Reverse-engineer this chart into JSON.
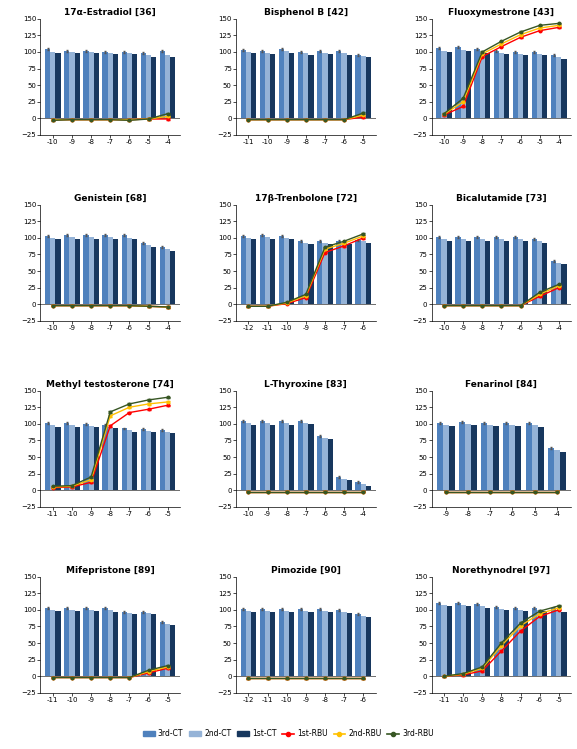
{
  "subplots": [
    {
      "title": "17α-Estradiol [36]",
      "x_ticks": [
        -10,
        -9,
        -8,
        -7,
        -6,
        -5,
        -4
      ],
      "bar3_ct": [
        104,
        101,
        101,
        100,
        100,
        99,
        101
      ],
      "bar2_ct": [
        100,
        100,
        100,
        98,
        99,
        96,
        95
      ],
      "bar1_ct": [
        99,
        98,
        98,
        97,
        97,
        92,
        93
      ],
      "line1_rbu": [
        -2,
        -2,
        -2,
        -2,
        -2,
        -1,
        -1
      ],
      "line2_rbu": [
        -2,
        -2,
        -2,
        -2,
        -2,
        -1,
        3
      ],
      "line3_rbu": [
        -3,
        -2,
        -2,
        -2,
        -3,
        -1,
        7
      ],
      "xlim": [
        -0.65,
        6.65
      ],
      "ylim": [
        -25,
        150
      ]
    },
    {
      "title": "Bisphenol B [42]",
      "x_ticks": [
        -11,
        -10,
        -9,
        -8,
        -7,
        -6,
        -5
      ],
      "bar3_ct": [
        103,
        101,
        104,
        100,
        101,
        101,
        95
      ],
      "bar2_ct": [
        100,
        99,
        101,
        98,
        99,
        98,
        94
      ],
      "bar1_ct": [
        98,
        97,
        99,
        96,
        97,
        96,
        92
      ],
      "line1_rbu": [
        -2,
        -2,
        -2,
        -2,
        -2,
        -2,
        2
      ],
      "line2_rbu": [
        -2,
        -2,
        -2,
        -2,
        -2,
        -2,
        5
      ],
      "line3_rbu": [
        -2,
        -2,
        -2,
        -2,
        -2,
        -2,
        8
      ],
      "xlim": [
        -0.65,
        6.65
      ],
      "ylim": [
        -25,
        150
      ]
    },
    {
      "title": "Fluoxymestrone [43]",
      "x_ticks": [
        -10,
        -9,
        -8,
        -7,
        -6,
        -5,
        -4
      ],
      "bar3_ct": [
        106,
        107,
        104,
        101,
        100,
        100,
        96
      ],
      "bar2_ct": [
        102,
        103,
        100,
        98,
        97,
        97,
        93
      ],
      "bar1_ct": [
        100,
        101,
        98,
        97,
        95,
        95,
        90
      ],
      "line1_rbu": [
        5,
        18,
        93,
        108,
        122,
        132,
        137
      ],
      "line2_rbu": [
        6,
        25,
        97,
        112,
        126,
        136,
        140
      ],
      "line3_rbu": [
        7,
        30,
        100,
        116,
        130,
        140,
        143
      ],
      "xlim": [
        -0.65,
        6.65
      ],
      "ylim": [
        -25,
        150
      ]
    },
    {
      "title": "Genistein [68]",
      "x_ticks": [
        -10,
        -9,
        -8,
        -7,
        -6,
        -5,
        -4
      ],
      "bar3_ct": [
        103,
        104,
        104,
        104,
        104,
        92,
        87
      ],
      "bar2_ct": [
        100,
        101,
        101,
        101,
        100,
        89,
        84
      ],
      "bar1_ct": [
        98,
        99,
        99,
        99,
        98,
        86,
        81
      ],
      "line1_rbu": [
        -2,
        -2,
        -2,
        -2,
        -2,
        -3,
        -4
      ],
      "line2_rbu": [
        -2,
        -2,
        -2,
        -2,
        -2,
        -3,
        -4
      ],
      "line3_rbu": [
        -2,
        -2,
        -2,
        -2,
        -2,
        -3,
        -4
      ],
      "xlim": [
        -0.65,
        6.65
      ],
      "ylim": [
        -25,
        150
      ]
    },
    {
      "title": "17β-Trenbolone [72]",
      "x_ticks": [
        -12,
        -11,
        -10,
        -9,
        -8,
        -7,
        -6
      ],
      "bar3_ct": [
        103,
        104,
        103,
        95,
        95,
        95,
        97
      ],
      "bar2_ct": [
        100,
        101,
        100,
        93,
        93,
        93,
        95
      ],
      "bar1_ct": [
        98,
        99,
        98,
        91,
        91,
        91,
        93
      ],
      "line1_rbu": [
        -3,
        -3,
        1,
        10,
        78,
        88,
        100
      ],
      "line2_rbu": [
        -3,
        -3,
        2,
        13,
        83,
        92,
        103
      ],
      "line3_rbu": [
        -3,
        -3,
        3,
        15,
        86,
        95,
        106
      ],
      "xlim": [
        -0.65,
        6.65
      ],
      "ylim": [
        -25,
        150
      ]
    },
    {
      "title": "Bicalutamide [73]",
      "x_ticks": [
        -10,
        -9,
        -8,
        -7,
        -6,
        -5,
        -4
      ],
      "bar3_ct": [
        101,
        101,
        101,
        101,
        101,
        98,
        65
      ],
      "bar2_ct": [
        98,
        98,
        98,
        98,
        98,
        95,
        62
      ],
      "bar1_ct": [
        96,
        96,
        96,
        96,
        96,
        93,
        60
      ],
      "line1_rbu": [
        -2,
        -2,
        -2,
        -2,
        -2,
        12,
        25
      ],
      "line2_rbu": [
        -2,
        -2,
        -2,
        -2,
        -2,
        15,
        28
      ],
      "line3_rbu": [
        -2,
        -2,
        -2,
        -2,
        -2,
        18,
        30
      ],
      "xlim": [
        -0.65,
        6.65
      ],
      "ylim": [
        -25,
        150
      ]
    },
    {
      "title": "Methyl testosterone [74]",
      "x_ticks": [
        -11,
        -10,
        -9,
        -8,
        -7,
        -6,
        -5
      ],
      "bar3_ct": [
        101,
        101,
        100,
        99,
        93,
        92,
        91
      ],
      "bar2_ct": [
        98,
        98,
        97,
        96,
        90,
        89,
        88
      ],
      "bar1_ct": [
        96,
        96,
        95,
        94,
        88,
        87,
        86
      ],
      "line1_rbu": [
        4,
        5,
        12,
        97,
        117,
        122,
        128
      ],
      "line2_rbu": [
        5,
        6,
        16,
        112,
        125,
        130,
        133
      ],
      "line3_rbu": [
        6,
        7,
        20,
        118,
        130,
        136,
        140
      ],
      "xlim": [
        -0.65,
        6.65
      ],
      "ylim": [
        -25,
        150
      ]
    },
    {
      "title": "L-Thyroxine [83]",
      "x_ticks": [
        -10,
        -9,
        -8,
        -7,
        -6,
        -5,
        -4
      ],
      "bar3_ct": [
        104,
        104,
        104,
        105,
        82,
        20,
        12
      ],
      "bar2_ct": [
        101,
        101,
        101,
        102,
        79,
        17,
        9
      ],
      "bar1_ct": [
        99,
        99,
        99,
        100,
        77,
        15,
        7
      ],
      "line1_rbu": [
        -2,
        -2,
        -2,
        -2,
        -2,
        -2,
        -2
      ],
      "line2_rbu": [
        -2,
        -2,
        -2,
        -2,
        -2,
        -2,
        -2
      ],
      "line3_rbu": [
        -2,
        -2,
        -2,
        -2,
        -2,
        -2,
        -2
      ],
      "xlim": [
        -0.65,
        6.65
      ],
      "ylim": [
        -25,
        150
      ]
    },
    {
      "title": "Fenarinol [84]",
      "x_ticks": [
        -9,
        -8,
        -7,
        -6,
        -5,
        -4
      ],
      "bar3_ct": [
        102,
        103,
        102,
        102,
        101,
        63
      ],
      "bar2_ct": [
        99,
        100,
        99,
        99,
        98,
        60
      ],
      "bar1_ct": [
        97,
        98,
        97,
        97,
        96,
        58
      ],
      "line1_rbu": [
        -2,
        -2,
        -2,
        -2,
        -2,
        -2
      ],
      "line2_rbu": [
        -2,
        -2,
        -2,
        -2,
        -2,
        -2
      ],
      "line3_rbu": [
        -2,
        -2,
        -2,
        -2,
        -2,
        -2
      ],
      "xlim": [
        -0.65,
        5.65
      ],
      "ylim": [
        -25,
        150
      ]
    },
    {
      "title": "Mifepristone [89]",
      "x_ticks": [
        -11,
        -10,
        -9,
        -8,
        -7,
        -6,
        -5
      ],
      "bar3_ct": [
        103,
        103,
        103,
        102,
        97,
        97,
        82
      ],
      "bar2_ct": [
        100,
        100,
        100,
        99,
        95,
        95,
        79
      ],
      "bar1_ct": [
        98,
        98,
        98,
        97,
        93,
        93,
        77
      ],
      "line1_rbu": [
        -2,
        -2,
        -2,
        -2,
        -2,
        5,
        12
      ],
      "line2_rbu": [
        -2,
        -2,
        -2,
        -2,
        -2,
        7,
        14
      ],
      "line3_rbu": [
        -2,
        -2,
        -2,
        -2,
        -2,
        9,
        16
      ],
      "xlim": [
        -0.65,
        6.65
      ],
      "ylim": [
        -25,
        150
      ]
    },
    {
      "title": "Pimozide [90]",
      "x_ticks": [
        -12,
        -11,
        -10,
        -9,
        -8,
        -7,
        -6
      ],
      "bar3_ct": [
        101,
        101,
        101,
        101,
        101,
        100,
        94
      ],
      "bar2_ct": [
        98,
        98,
        98,
        98,
        98,
        97,
        91
      ],
      "bar1_ct": [
        96,
        96,
        96,
        96,
        96,
        95,
        89
      ],
      "line1_rbu": [
        -3,
        -3,
        -3,
        -3,
        -3,
        -3,
        -3
      ],
      "line2_rbu": [
        -3,
        -3,
        -3,
        -3,
        -3,
        -3,
        -3
      ],
      "line3_rbu": [
        -3,
        -3,
        -3,
        -3,
        -3,
        -3,
        -3
      ],
      "xlim": [
        -0.65,
        6.65
      ],
      "ylim": [
        -25,
        150
      ]
    },
    {
      "title": "Norethynodrel [97]",
      "x_ticks": [
        -11,
        -10,
        -9,
        -8,
        -7,
        -6,
        -5
      ],
      "bar3_ct": [
        110,
        110,
        108,
        104,
        103,
        103,
        102
      ],
      "bar2_ct": [
        107,
        107,
        105,
        101,
        100,
        100,
        99
      ],
      "bar1_ct": [
        105,
        105,
        103,
        99,
        98,
        98,
        97
      ],
      "line1_rbu": [
        0,
        2,
        8,
        38,
        68,
        90,
        100
      ],
      "line2_rbu": [
        0,
        3,
        12,
        46,
        76,
        94,
        103
      ],
      "line3_rbu": [
        0,
        4,
        14,
        50,
        80,
        98,
        106
      ],
      "xlim": [
        -0.65,
        6.65
      ],
      "ylim": [
        -25,
        150
      ]
    }
  ],
  "colors": {
    "bar3_ct": "#4f81bd",
    "bar2_ct": "#95b3d7",
    "bar1_ct": "#17375e",
    "line1_rbu": "#ff0000",
    "line2_rbu": "#ffc000",
    "line3_rbu": "#375623"
  },
  "legend_labels": [
    "3rd-CT",
    "2nd-CT",
    "1st-CT",
    "1st-RBU",
    "2nd-RBU",
    "3rd-RBU"
  ],
  "bar_width": 0.27,
  "fig_width": 5.77,
  "fig_height": 7.49
}
